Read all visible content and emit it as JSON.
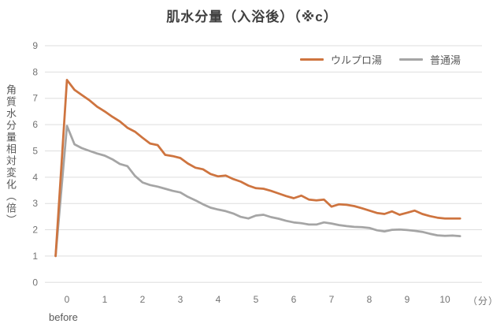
{
  "title": "肌水分量（入浴後）（※c）",
  "y_axis_label": "角質水分量相対変化（倍）",
  "x_axis_unit_label": "（分）",
  "x_axis_before_label": "before",
  "colors": {
    "orange_series": "#ce743f",
    "gray_series": "#a5a5a5",
    "gridline": "#dedede",
    "title_text": "#3f3f3f",
    "axis_text": "#737373",
    "label_text": "#595959",
    "background": "#ffffff"
  },
  "chart_data": {
    "type": "line",
    "title": "肌水分量（入浴後）（※c）",
    "ylabel": "角質水分量相対変化（倍）",
    "xlabel": "（分）",
    "x_before_label": "before",
    "ylim": [
      0,
      9
    ],
    "xlim": [
      -0.55,
      10.95
    ],
    "yticks": [
      0,
      1,
      2,
      3,
      4,
      5,
      6,
      7,
      8,
      9
    ],
    "xticks": [
      0,
      1,
      2,
      3,
      4,
      5,
      6,
      7,
      8,
      9,
      10
    ],
    "grid": true,
    "legend_position": "top-right",
    "note": "Both series start at value 1.0 at 'before' (pre-bath), peak immediately after bathing at minute 0, then decay; sampled ~every 0.2 min",
    "series": [
      {
        "name": "ウルプロ湯",
        "color": "#ce743f",
        "x": [
          -0.3,
          0,
          0.2,
          0.4,
          0.6,
          0.8,
          1,
          1.2,
          1.4,
          1.6,
          1.8,
          2,
          2.2,
          2.4,
          2.6,
          2.8,
          3,
          3.2,
          3.4,
          3.6,
          3.8,
          4,
          4.2,
          4.4,
          4.6,
          4.8,
          5,
          5.2,
          5.4,
          5.6,
          5.8,
          6,
          6.2,
          6.4,
          6.6,
          6.8,
          7,
          7.2,
          7.4,
          7.6,
          7.8,
          8,
          8.2,
          8.4,
          8.6,
          8.8,
          9,
          9.2,
          9.4,
          9.6,
          9.8,
          10,
          10.2,
          10.4
        ],
        "y": [
          1.0,
          7.7,
          7.32,
          7.12,
          6.92,
          6.68,
          6.5,
          6.3,
          6.12,
          5.88,
          5.73,
          5.5,
          5.28,
          5.22,
          4.85,
          4.8,
          4.73,
          4.52,
          4.36,
          4.3,
          4.12,
          4.03,
          4.06,
          3.93,
          3.83,
          3.68,
          3.58,
          3.56,
          3.48,
          3.38,
          3.28,
          3.2,
          3.3,
          3.15,
          3.12,
          3.15,
          2.88,
          2.97,
          2.95,
          2.9,
          2.82,
          2.73,
          2.64,
          2.6,
          2.7,
          2.57,
          2.65,
          2.73,
          2.6,
          2.52,
          2.46,
          2.43,
          2.43,
          2.43
        ]
      },
      {
        "name": "普通湯",
        "color": "#a5a5a5",
        "x": [
          -0.3,
          0,
          0.2,
          0.4,
          0.6,
          0.8,
          1,
          1.2,
          1.4,
          1.6,
          1.8,
          2,
          2.2,
          2.4,
          2.6,
          2.8,
          3,
          3.2,
          3.4,
          3.6,
          3.8,
          4,
          4.2,
          4.4,
          4.6,
          4.8,
          5,
          5.2,
          5.4,
          5.6,
          5.8,
          6,
          6.2,
          6.4,
          6.6,
          6.8,
          7,
          7.2,
          7.4,
          7.6,
          7.8,
          8,
          8.2,
          8.4,
          8.6,
          8.8,
          9,
          9.2,
          9.4,
          9.6,
          9.8,
          10,
          10.2,
          10.4
        ],
        "y": [
          1.0,
          5.95,
          5.25,
          5.1,
          5.0,
          4.9,
          4.82,
          4.68,
          4.5,
          4.42,
          4.05,
          3.8,
          3.7,
          3.64,
          3.56,
          3.48,
          3.42,
          3.25,
          3.12,
          2.97,
          2.84,
          2.77,
          2.71,
          2.62,
          2.49,
          2.43,
          2.54,
          2.57,
          2.48,
          2.42,
          2.34,
          2.28,
          2.25,
          2.2,
          2.2,
          2.28,
          2.24,
          2.18,
          2.14,
          2.11,
          2.1,
          2.07,
          1.98,
          1.94,
          2.0,
          2.01,
          1.99,
          1.96,
          1.92,
          1.85,
          1.79,
          1.77,
          1.78,
          1.76
        ]
      }
    ]
  }
}
